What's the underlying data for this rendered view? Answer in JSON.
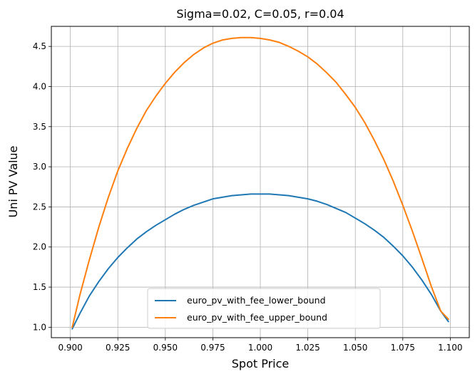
{
  "chart_data": {
    "type": "line",
    "title": "Sigma=0.02, C=0.05, r=0.04",
    "xlabel": "Spot Price",
    "ylabel": "Uni PV Value",
    "xlim": [
      0.89,
      1.11
    ],
    "ylim": [
      0.87,
      4.75
    ],
    "xticks": [
      0.9,
      0.925,
      0.95,
      0.975,
      1.0,
      1.025,
      1.05,
      1.075,
      1.1
    ],
    "xtick_labels": [
      "0.900",
      "0.925",
      "0.950",
      "0.975",
      "1.000",
      "1.025",
      "1.050",
      "1.075",
      "1.100"
    ],
    "yticks": [
      1.0,
      1.5,
      2.0,
      2.5,
      3.0,
      3.5,
      4.0,
      4.5
    ],
    "ytick_labels": [
      "1.0",
      "1.5",
      "2.0",
      "2.5",
      "3.0",
      "3.5",
      "4.0",
      "4.5"
    ],
    "grid": true,
    "legend_position": "lower-center",
    "series": [
      {
        "name": "euro_pv_with_fee_lower_bound",
        "color": "#1f77b4",
        "x": [
          0.901,
          0.905,
          0.91,
          0.915,
          0.92,
          0.925,
          0.93,
          0.935,
          0.94,
          0.945,
          0.95,
          0.955,
          0.96,
          0.965,
          0.97,
          0.975,
          0.98,
          0.985,
          0.99,
          0.995,
          1.0,
          1.005,
          1.01,
          1.015,
          1.02,
          1.025,
          1.03,
          1.035,
          1.04,
          1.045,
          1.05,
          1.055,
          1.06,
          1.065,
          1.07,
          1.075,
          1.08,
          1.085,
          1.09,
          1.095,
          1.099
        ],
        "y": [
          0.98,
          1.17,
          1.39,
          1.57,
          1.73,
          1.87,
          1.99,
          2.1,
          2.19,
          2.27,
          2.34,
          2.41,
          2.47,
          2.52,
          2.56,
          2.6,
          2.62,
          2.64,
          2.65,
          2.66,
          2.66,
          2.66,
          2.65,
          2.64,
          2.62,
          2.6,
          2.57,
          2.53,
          2.48,
          2.43,
          2.36,
          2.29,
          2.21,
          2.12,
          2.01,
          1.89,
          1.75,
          1.59,
          1.41,
          1.2,
          1.07
        ]
      },
      {
        "name": "euro_pv_with_fee_upper_bound",
        "color": "#ff7f0e",
        "x": [
          0.901,
          0.905,
          0.91,
          0.915,
          0.92,
          0.925,
          0.93,
          0.935,
          0.94,
          0.945,
          0.95,
          0.955,
          0.96,
          0.965,
          0.97,
          0.975,
          0.98,
          0.985,
          0.99,
          0.995,
          1.0,
          1.005,
          1.01,
          1.015,
          1.02,
          1.025,
          1.03,
          1.035,
          1.04,
          1.045,
          1.05,
          1.055,
          1.06,
          1.065,
          1.07,
          1.075,
          1.08,
          1.085,
          1.09,
          1.095,
          1.099
        ],
        "y": [
          1.0,
          1.4,
          1.84,
          2.25,
          2.62,
          2.95,
          3.23,
          3.48,
          3.7,
          3.88,
          4.04,
          4.18,
          4.3,
          4.4,
          4.48,
          4.54,
          4.58,
          4.6,
          4.61,
          4.61,
          4.6,
          4.58,
          4.55,
          4.5,
          4.44,
          4.37,
          4.28,
          4.17,
          4.05,
          3.9,
          3.74,
          3.55,
          3.33,
          3.09,
          2.82,
          2.52,
          2.2,
          1.86,
          1.51,
          1.2,
          1.1
        ]
      }
    ]
  }
}
